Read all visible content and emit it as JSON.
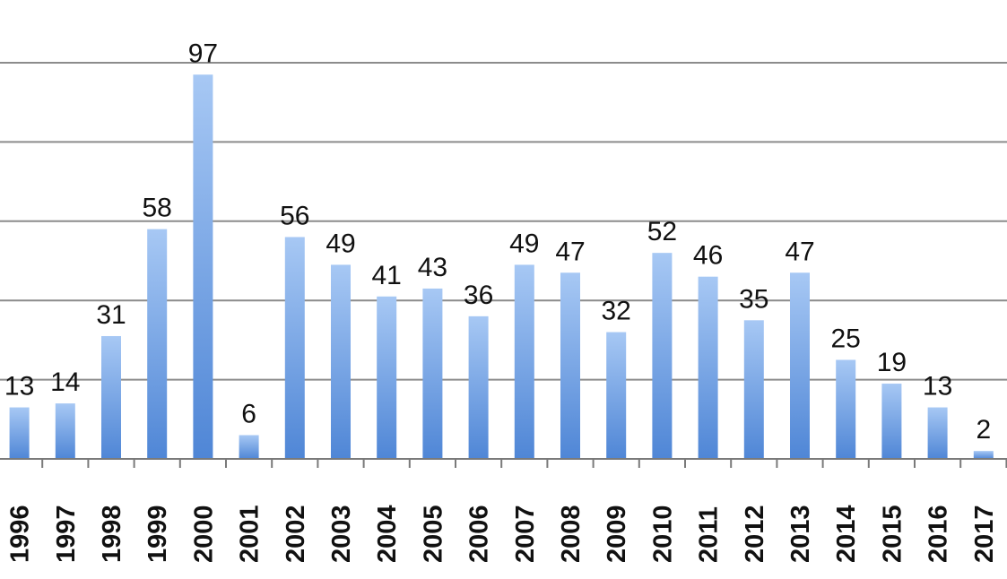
{
  "chart_data": {
    "type": "bar",
    "title": "",
    "xlabel": "",
    "ylabel": "",
    "categories": [
      "1996",
      "1997",
      "1998",
      "1999",
      "2000",
      "2001",
      "2002",
      "2003",
      "2004",
      "2005",
      "2006",
      "2007",
      "2008",
      "2009",
      "2010",
      "2011",
      "2012",
      "2013",
      "2014",
      "2015",
      "2016",
      "2017"
    ],
    "series": [
      {
        "values": [
          13,
          14,
          31,
          58,
          97,
          6,
          56,
          49,
          41,
          43,
          36,
          49,
          47,
          32,
          52,
          46,
          35,
          47,
          25,
          19,
          13,
          2
        ],
        "color": "#6fa1e2"
      }
    ],
    "ylim": [
      0,
      100
    ],
    "ytick_step": 20,
    "grid": true,
    "legend": "none",
    "data_labels": true,
    "ytick_labels_visible": false,
    "xtick_label_rotation": "vertical"
  }
}
